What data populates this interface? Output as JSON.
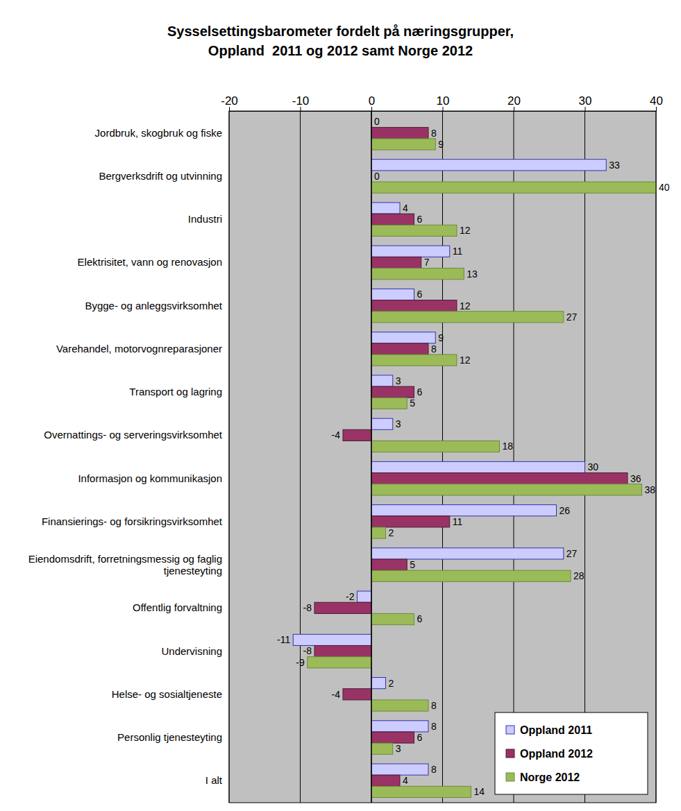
{
  "chart_data": {
    "type": "bar",
    "title": "Sysselsettingsbarometer fordelt på næringsgrupper,\nOppland  2011 og 2012 samt Norge 2012",
    "orientation": "horizontal",
    "categories": [
      "Jordbruk, skogbruk og fiske",
      "Bergverksdrift og utvinning",
      "Industri",
      "Elektrisitet, vann og renovasjon",
      "Bygge- og anleggsvirksomhet",
      "Varehandel, motorvognreparasjoner",
      "Transport og lagring",
      "Overnattings- og serveringsvirksomhet",
      "Informasjon og kommunikasjon",
      "Finansierings- og forsikringsvirksomhet",
      "Eiendomsdrift, forretningsmessig og faglig tjenesteyting",
      "Offentlig forvaltning",
      "Undervisning",
      "Helse- og sosialtjeneste",
      "Personlig tjenesteyting",
      "I alt"
    ],
    "series": [
      {
        "name": "Oppland 2011",
        "color": "#ccccff",
        "values": [
          0,
          33,
          4,
          11,
          6,
          9,
          3,
          3,
          30,
          26,
          27,
          -2,
          -11,
          2,
          8,
          8
        ]
      },
      {
        "name": "Oppland 2012",
        "color": "#993366",
        "values": [
          8,
          0,
          6,
          7,
          12,
          8,
          6,
          -4,
          36,
          11,
          5,
          -8,
          -8,
          -4,
          6,
          4
        ]
      },
      {
        "name": "Norge 2012",
        "color": "#9bbb59",
        "values": [
          9,
          40,
          12,
          13,
          27,
          12,
          5,
          18,
          38,
          2,
          28,
          6,
          -9,
          8,
          3,
          14
        ]
      }
    ],
    "xlim": [
      -20,
      40
    ],
    "xticks": [
      -20,
      -10,
      0,
      10,
      20,
      30,
      40
    ],
    "grid": true,
    "legend": "bottom-right",
    "data_labels": true
  }
}
